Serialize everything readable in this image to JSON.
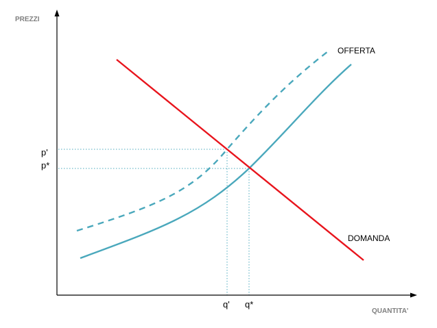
{
  "chart_data": {
    "type": "line",
    "xlabel": "QUANTITA'",
    "ylabel": "PREZZI",
    "ticks": {
      "y": [
        {
          "label": "p'",
          "series": "offerta-spostata"
        },
        {
          "label": "p*",
          "series": "offerta"
        }
      ],
      "x": [
        {
          "label": "q'",
          "series": "offerta-spostata"
        },
        {
          "label": "q*",
          "series": "offerta"
        }
      ]
    },
    "series": [
      {
        "id": "offerta",
        "name": "OFFERTA",
        "style": "solid",
        "color": "#4aa8bc"
      },
      {
        "id": "offerta-spostata",
        "name": "",
        "style": "dashed",
        "color": "#4aa8bc"
      },
      {
        "id": "domanda",
        "name": "DOMANDA",
        "style": "solid",
        "color": "#e8141c"
      }
    ],
    "grid": false,
    "guides": "dotted lines from each intersection to both axes"
  },
  "colors": {
    "axis": "#000000",
    "offerta": "#4aa8bc",
    "domanda": "#e8141c",
    "guide": "#4aa8bc",
    "axis_title": "#7f7f7f"
  }
}
